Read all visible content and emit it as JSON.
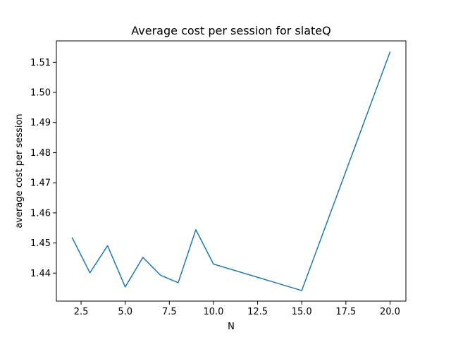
{
  "chart_data": {
    "type": "line",
    "title": "Average cost per session for slateQ",
    "xlabel": "N",
    "ylabel": "average cost per session",
    "xlim": [
      1.1,
      20.9
    ],
    "ylim": [
      1.4307,
      1.5171
    ],
    "xticks": [
      2.5,
      5.0,
      7.5,
      10.0,
      12.5,
      15.0,
      17.5,
      20.0
    ],
    "xtick_labels": [
      "2.5",
      "5.0",
      "7.5",
      "10.0",
      "12.5",
      "15.0",
      "17.5",
      "20.0"
    ],
    "yticks": [
      1.44,
      1.45,
      1.46,
      1.47,
      1.48,
      1.49,
      1.5,
      1.51
    ],
    "ytick_labels": [
      "1.44",
      "1.45",
      "1.46",
      "1.47",
      "1.48",
      "1.49",
      "1.50",
      "1.51"
    ],
    "grid": false,
    "legend": "none",
    "color": "#1f77b4",
    "series": [
      {
        "x": [
          2,
          3,
          4,
          5,
          6,
          7,
          8,
          9,
          10,
          15,
          20
        ],
        "y": [
          1.4517,
          1.4401,
          1.4491,
          1.4354,
          1.4452,
          1.4393,
          1.4368,
          1.4544,
          1.443,
          1.4342,
          1.5134
        ]
      }
    ]
  }
}
